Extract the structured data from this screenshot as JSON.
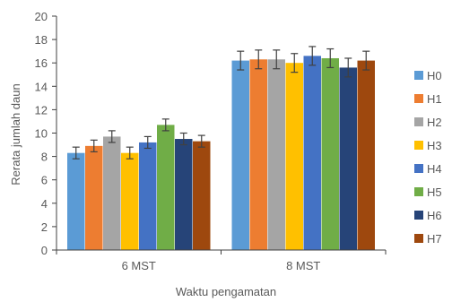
{
  "chart_data": {
    "type": "bar",
    "categories": [
      "6 MST",
      "8 MST"
    ],
    "xlabel": "Waktu pengamatan",
    "ylabel": "Rerata jumlah daun",
    "ylim": [
      0,
      20
    ],
    "yticks": [
      0,
      2,
      4,
      6,
      8,
      10,
      12,
      14,
      16,
      18,
      20
    ],
    "grid": false,
    "legend": "right",
    "series": [
      {
        "name": "H0",
        "color": "#5B9BD5",
        "values": [
          8.3,
          16.2
        ],
        "errors": [
          0.5,
          0.8
        ]
      },
      {
        "name": "H1",
        "color": "#ED7D31",
        "values": [
          8.9,
          16.3
        ],
        "errors": [
          0.5,
          0.8
        ]
      },
      {
        "name": "H2",
        "color": "#A5A5A5",
        "values": [
          9.7,
          16.3
        ],
        "errors": [
          0.5,
          0.8
        ]
      },
      {
        "name": "H3",
        "color": "#FFC000",
        "values": [
          8.3,
          16.0
        ],
        "errors": [
          0.5,
          0.8
        ]
      },
      {
        "name": "H4",
        "color": "#4472C4",
        "values": [
          9.2,
          16.6
        ],
        "errors": [
          0.5,
          0.8
        ]
      },
      {
        "name": "H5",
        "color": "#70AD47",
        "values": [
          10.7,
          16.4
        ],
        "errors": [
          0.5,
          0.8
        ]
      },
      {
        "name": "H6",
        "color": "#264478",
        "values": [
          9.5,
          15.6
        ],
        "errors": [
          0.5,
          0.8
        ]
      },
      {
        "name": "H7",
        "color": "#9E480E",
        "values": [
          9.3,
          16.2
        ],
        "errors": [
          0.5,
          0.8
        ]
      }
    ]
  }
}
